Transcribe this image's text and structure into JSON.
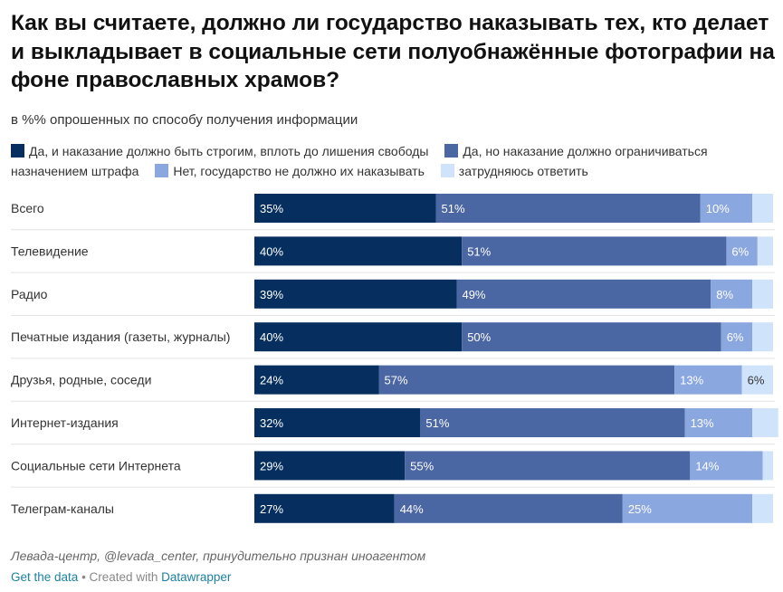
{
  "title": "Как вы считаете, должно ли государство наказывать тех, кто делает и выкладывает в социальные сети полуобнажённые фотографии на фоне православных храмов?",
  "subtitle": "в %% опрошенных по способу получения информации",
  "legend": [
    {
      "label": "Да, и наказание должно быть строгим, вплоть до лишения свободы",
      "color": "#062f5f"
    },
    {
      "label": "Да, но наказание должно ограничиваться назначением штрафа",
      "color": "#4a66a3"
    },
    {
      "label": "Нет, государство не должно их наказывать",
      "color": "#8aa7e0"
    },
    {
      "label": "затрудняюсь ответить",
      "color": "#cfe3fb"
    }
  ],
  "chart_data": {
    "type": "bar",
    "orientation": "horizontal",
    "stacked": true,
    "categories": [
      "Всего",
      "Телевидение",
      "Радио",
      "Печатные издания (газеты, журналы)",
      "Друзья, родные, соседи",
      "Интернет-издания",
      "Социальные сети Интернета",
      "Телеграм-каналы"
    ],
    "series": [
      {
        "name": "Да, и наказание должно быть строгим, вплоть до лишения свободы",
        "color": "#062f5f",
        "label_color": "#ffffff",
        "values": [
          35,
          40,
          39,
          40,
          24,
          32,
          29,
          27
        ]
      },
      {
        "name": "Да, но наказание должно ограничиваться назначением штрафа",
        "color": "#4a66a3",
        "label_color": "#ffffff",
        "values": [
          51,
          51,
          49,
          50,
          57,
          51,
          55,
          44
        ]
      },
      {
        "name": "Нет, государство не должно их наказывать",
        "color": "#8aa7e0",
        "label_color": "#ffffff",
        "values": [
          10,
          6,
          8,
          6,
          13,
          13,
          14,
          25
        ]
      },
      {
        "name": "затрудняюсь ответить",
        "color": "#cfe3fb",
        "label_color": "#333333",
        "values": [
          4,
          3,
          4,
          4,
          6,
          5,
          2,
          4
        ]
      }
    ],
    "value_labels": [
      [
        "35%",
        "51%",
        "10%",
        ""
      ],
      [
        "40%",
        "51%",
        "6%",
        ""
      ],
      [
        "39%",
        "49%",
        "8%",
        ""
      ],
      [
        "40%",
        "50%",
        "6%",
        ""
      ],
      [
        "24%",
        "57%",
        "13%",
        "6%"
      ],
      [
        "32%",
        "51%",
        "13%",
        ""
      ],
      [
        "29%",
        "55%",
        "14%",
        ""
      ],
      [
        "27%",
        "44%",
        "25%",
        ""
      ]
    ],
    "xlim": [
      0,
      100
    ],
    "grid": false,
    "legend_position": "top"
  },
  "footer": {
    "source": "Левада-центр, @levada_center, принудительно признан иноагентом",
    "get_data": "Get the data",
    "separator": " • Created with ",
    "tool": "Datawrapper"
  }
}
